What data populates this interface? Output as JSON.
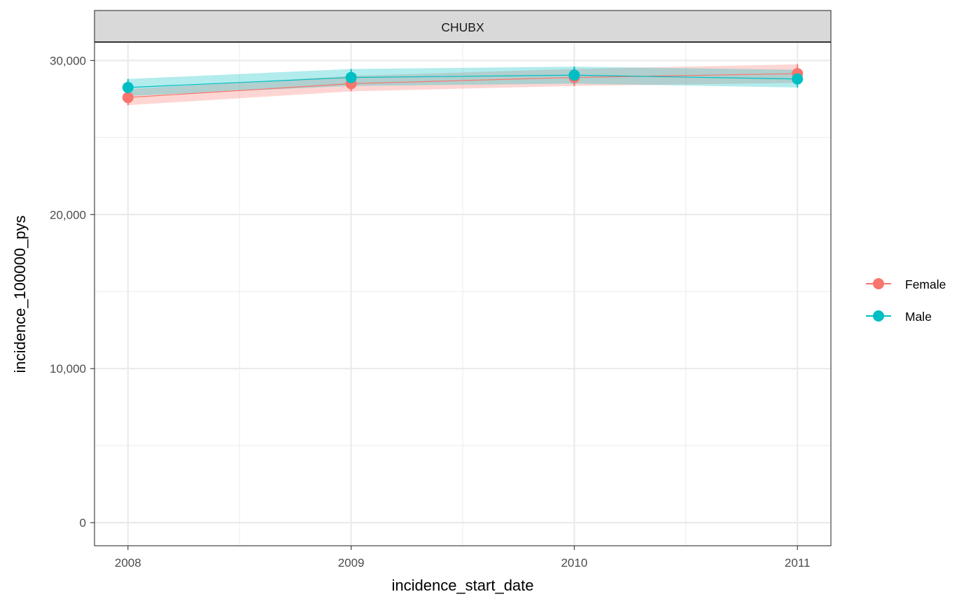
{
  "chart_data": {
    "type": "line",
    "facet": "CHUBX",
    "xlabel": "incidence_start_date",
    "ylabel": "incidence_100000_pys",
    "x": [
      2008,
      2009,
      2010,
      2011
    ],
    "x_tick_labels": [
      "2008",
      "2009",
      "2010",
      "2011"
    ],
    "xlim": [
      2007.85,
      2011.15
    ],
    "ylim": [
      -1500,
      31200
    ],
    "y_ticks": [
      0,
      10000,
      20000,
      30000
    ],
    "y_tick_labels": [
      "0",
      "10,000",
      "20,000",
      "30,000"
    ],
    "grid": true,
    "legend_position": "right",
    "ribbons": true,
    "error_bars": true,
    "series": [
      {
        "name": "Female",
        "color": "#F8766D",
        "values": [
          27600,
          28500,
          28900,
          29150
        ],
        "lower": [
          27100,
          28000,
          28350,
          28550
        ],
        "upper": [
          28150,
          29000,
          29450,
          29750
        ]
      },
      {
        "name": "Male",
        "color": "#00BFC4",
        "values": [
          28250,
          28900,
          29050,
          28800
        ],
        "lower": [
          27700,
          28350,
          28500,
          28250
        ],
        "upper": [
          28800,
          29450,
          29600,
          29400
        ]
      }
    ]
  }
}
